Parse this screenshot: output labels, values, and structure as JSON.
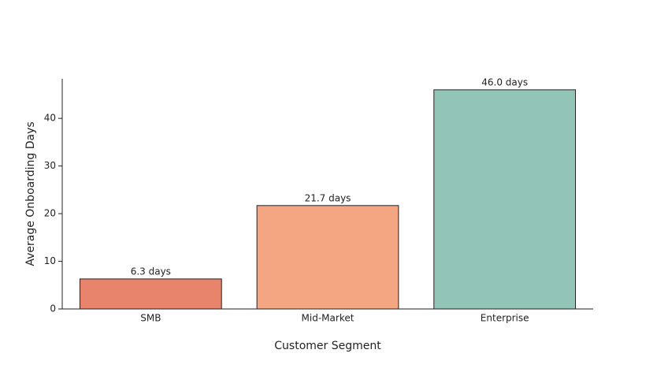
{
  "chart_data": {
    "type": "bar",
    "x_label": "Customer Segment",
    "y_label": "Average Onboarding Days",
    "categories": [
      "SMB",
      "Mid-Market",
      "Enterprise"
    ],
    "values": [
      6.3,
      21.7,
      46.0
    ],
    "value_labels": [
      "6.3 days",
      "21.7 days",
      "46.0 days"
    ],
    "colors": [
      "#e8846c",
      "#f4a582",
      "#92c5b7"
    ],
    "ylim": [
      0,
      48.3
    ],
    "yticks": [
      0,
      10,
      20,
      30,
      40
    ],
    "grid": false
  }
}
